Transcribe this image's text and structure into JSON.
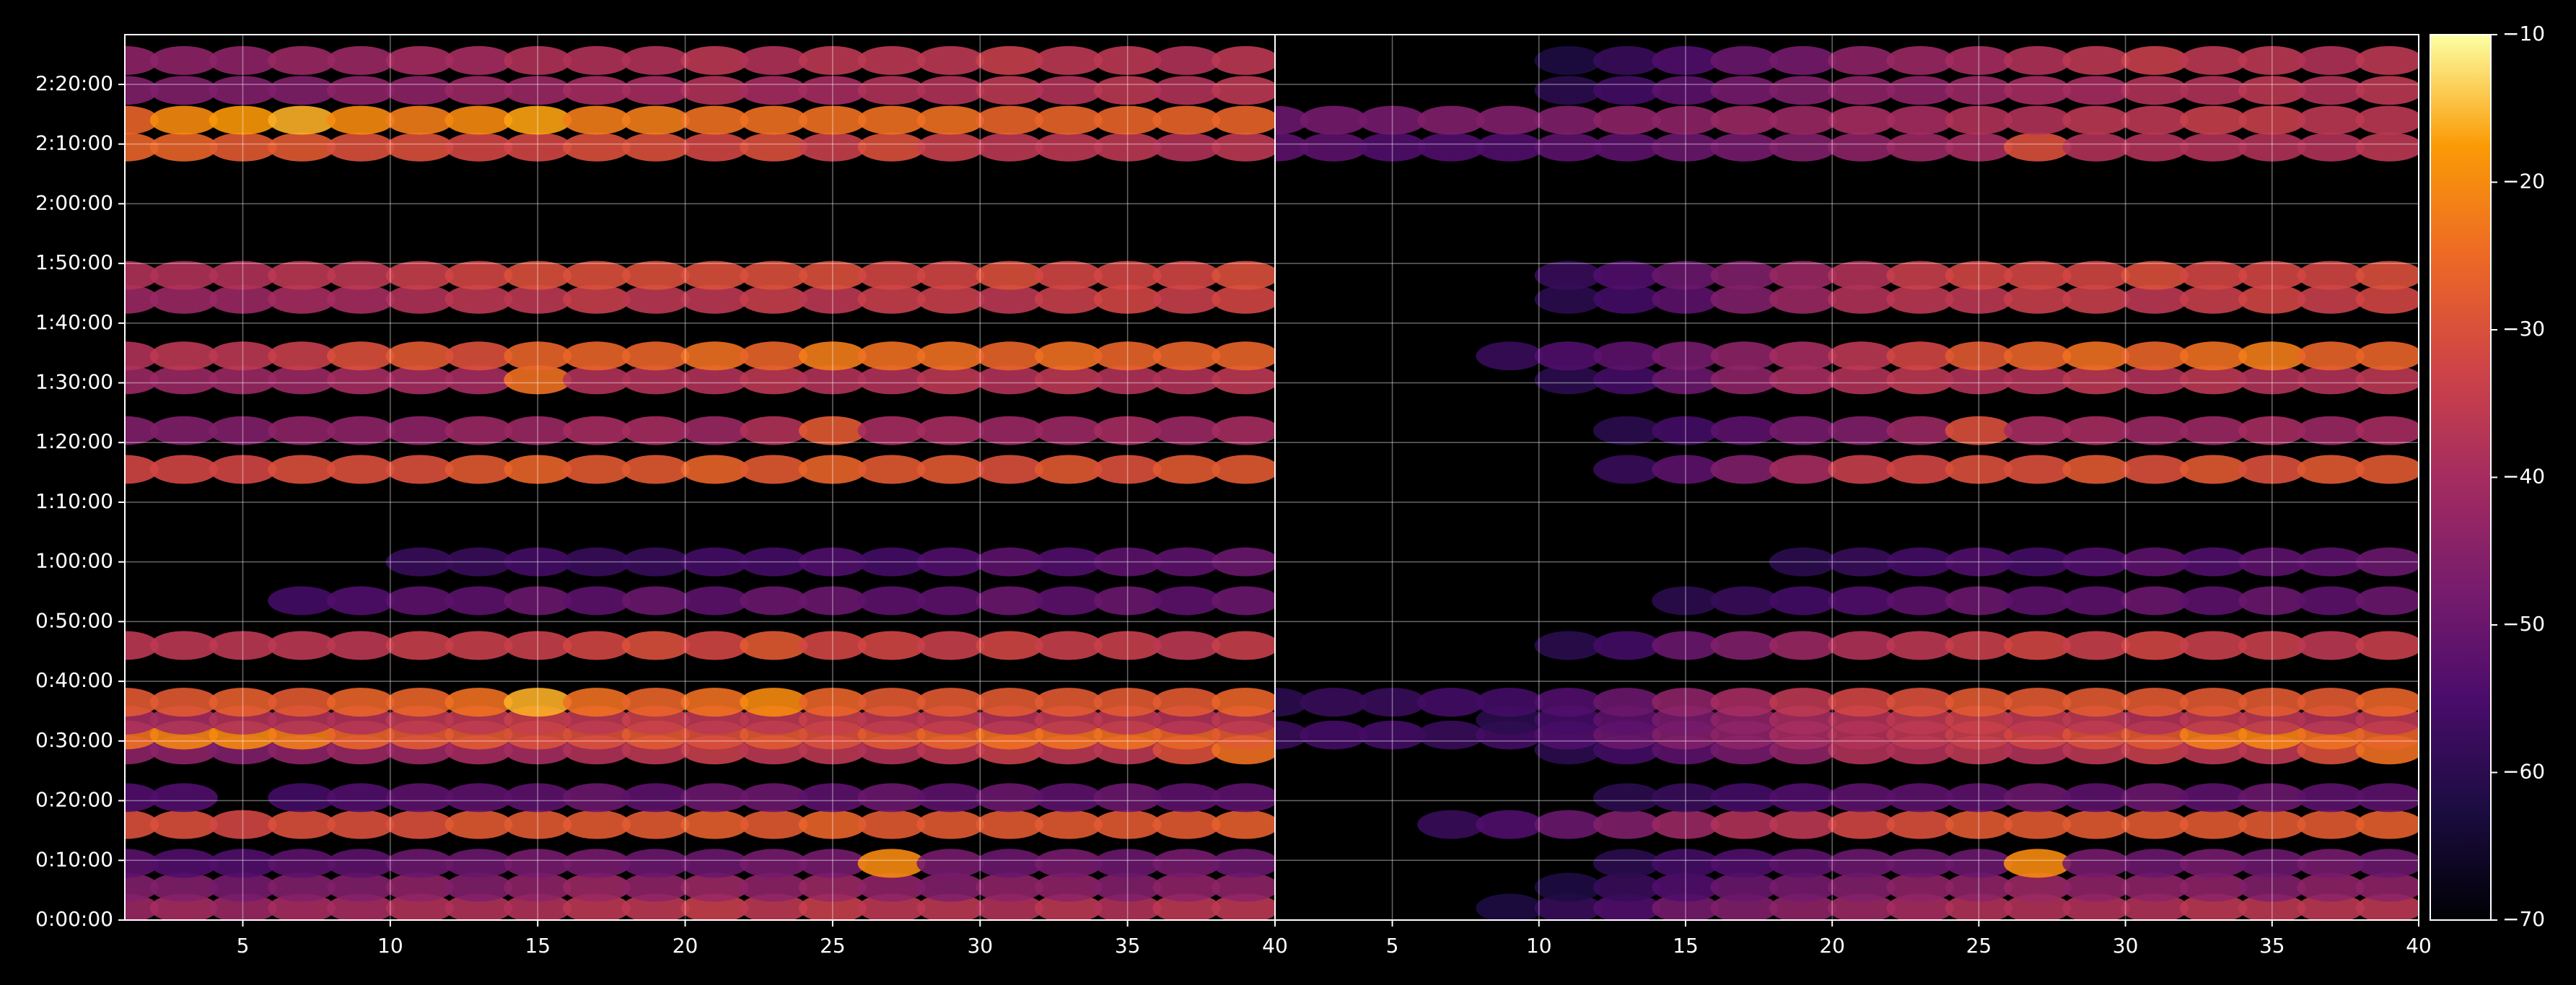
{
  "chart_data": {
    "type": "heatmap",
    "colormap": "inferno",
    "grid": true,
    "x": [
      1,
      3,
      5,
      7,
      9,
      11,
      13,
      15,
      17,
      19,
      21,
      23,
      25,
      27,
      29,
      31,
      33,
      35,
      37,
      39
    ],
    "y": [
      120,
      330,
      570,
      960,
      1230,
      1710,
      1860,
      2010,
      2190,
      2760,
      3210,
      3600,
      4530,
      4920,
      5430,
      5670,
      6240,
      6480,
      7770,
      8040,
      8340,
      8640
    ],
    "ylim": [
      0,
      8900
    ],
    "yticks": [
      {
        "value": 0,
        "label": "0:00:00"
      },
      {
        "value": 600,
        "label": "0:10:00"
      },
      {
        "value": 1200,
        "label": "0:20:00"
      },
      {
        "value": 1800,
        "label": "0:30:00"
      },
      {
        "value": 2400,
        "label": "0:40:00"
      },
      {
        "value": 3000,
        "label": "0:50:00"
      },
      {
        "value": 3600,
        "label": "1:00:00"
      },
      {
        "value": 4200,
        "label": "1:10:00"
      },
      {
        "value": 4800,
        "label": "1:20:00"
      },
      {
        "value": 5400,
        "label": "1:30:00"
      },
      {
        "value": 6000,
        "label": "1:40:00"
      },
      {
        "value": 6600,
        "label": "1:50:00"
      },
      {
        "value": 7200,
        "label": "2:00:00"
      },
      {
        "value": 7800,
        "label": "2:10:00"
      },
      {
        "value": 8400,
        "label": "2:20:00"
      }
    ],
    "colorbar": {
      "lim": [
        -70,
        -10
      ],
      "ticks": [
        {
          "value": -10,
          "label": "−10"
        },
        {
          "value": -20,
          "label": "−20"
        },
        {
          "value": -30,
          "label": "−30"
        },
        {
          "value": -40,
          "label": "−40"
        },
        {
          "value": -50,
          "label": "−50"
        },
        {
          "value": -60,
          "label": "−60"
        },
        {
          "value": -70,
          "label": "−70"
        }
      ]
    },
    "panels": [
      {
        "xlim": [
          1,
          40
        ],
        "xticks": [
          5,
          10,
          15,
          20,
          25,
          30,
          35,
          40
        ],
        "values": [
          [
            -42,
            -40,
            -42,
            -40,
            -40,
            -38,
            -38,
            -38,
            -36,
            -36,
            -34,
            -36,
            -34,
            -36,
            -36,
            -38,
            -36,
            -38,
            -36,
            -36
          ],
          [
            -46,
            -46,
            -48,
            -46,
            -46,
            -44,
            -46,
            -44,
            -42,
            -44,
            -42,
            -44,
            -42,
            -44,
            -46,
            -44,
            -44,
            -46,
            -44,
            -44
          ],
          [
            -52,
            -54,
            -54,
            -52,
            -52,
            -50,
            -50,
            -48,
            -48,
            -50,
            -50,
            -48,
            -48,
            -20,
            -48,
            -50,
            -48,
            -50,
            -48,
            -50
          ],
          [
            -30,
            -30,
            -32,
            -30,
            -30,
            -30,
            -28,
            -28,
            -28,
            -28,
            -27,
            -28,
            -26,
            -28,
            -28,
            -28,
            -28,
            -28,
            -28,
            -27
          ],
          [
            -54,
            -54,
            null,
            -56,
            -54,
            -52,
            -52,
            -52,
            -50,
            -52,
            -50,
            -50,
            -52,
            -50,
            -52,
            -50,
            -52,
            -50,
            -52,
            -52
          ],
          [
            -44,
            -44,
            -46,
            -44,
            -42,
            -42,
            -40,
            -40,
            -38,
            -36,
            -34,
            -36,
            -36,
            -38,
            -36,
            -34,
            -36,
            -36,
            -30,
            -24
          ],
          [
            -24,
            -21,
            -20,
            -22,
            -26,
            -28,
            -28,
            -30,
            -30,
            -28,
            -30,
            -28,
            -30,
            -28,
            -26,
            -24,
            -24,
            -24,
            -26,
            -28
          ],
          [
            -40,
            -40,
            -38,
            -38,
            -38,
            -36,
            -36,
            -34,
            -36,
            -34,
            -36,
            -36,
            -34,
            -36,
            -36,
            -38,
            -36,
            -36,
            -38,
            -36
          ],
          [
            -28,
            -28,
            -27,
            -28,
            -26,
            -26,
            -24,
            -16,
            -24,
            -26,
            -24,
            -20,
            -26,
            -28,
            -28,
            -28,
            -28,
            -28,
            -28,
            -26
          ],
          [
            -36,
            -36,
            -36,
            -36,
            -36,
            -34,
            -34,
            -34,
            -32,
            -30,
            -32,
            -28,
            -32,
            -32,
            -34,
            -32,
            -34,
            -34,
            -36,
            -34
          ],
          [
            null,
            null,
            null,
            -56,
            -54,
            -52,
            -52,
            -50,
            -52,
            -50,
            -52,
            -50,
            -50,
            -52,
            -52,
            -50,
            -52,
            -50,
            -52,
            -50
          ],
          [
            null,
            null,
            null,
            null,
            null,
            -58,
            -58,
            -56,
            -58,
            -58,
            -56,
            -56,
            -54,
            -56,
            -54,
            -52,
            -54,
            -52,
            -52,
            -50
          ],
          [
            -32,
            -32,
            -32,
            -30,
            -30,
            -30,
            -28,
            -26,
            -28,
            -28,
            -26,
            -28,
            -26,
            -28,
            -28,
            -30,
            -28,
            -30,
            -28,
            -28
          ],
          [
            -46,
            -46,
            -46,
            -44,
            -44,
            -44,
            -42,
            -42,
            -40,
            -40,
            -42,
            -38,
            -28,
            -40,
            -40,
            -42,
            -42,
            -40,
            -42,
            -40
          ],
          [
            -42,
            -42,
            -42,
            -42,
            -40,
            -40,
            -40,
            -24,
            -38,
            -38,
            -38,
            -36,
            -38,
            -38,
            -36,
            -38,
            -36,
            -38,
            -38,
            -36
          ],
          [
            -38,
            -36,
            -36,
            -34,
            -30,
            -28,
            -30,
            -26,
            -26,
            -26,
            -24,
            -26,
            -22,
            -24,
            -24,
            -26,
            -24,
            -26,
            -26,
            -26
          ],
          [
            -42,
            -42,
            -42,
            -40,
            -40,
            -38,
            -36,
            -36,
            -34,
            -36,
            -36,
            -34,
            -36,
            -34,
            -34,
            -36,
            -34,
            -32,
            -34,
            -32
          ],
          [
            -38,
            -38,
            -38,
            -36,
            -36,
            -34,
            -32,
            -30,
            -30,
            -30,
            -30,
            -30,
            -30,
            -32,
            -32,
            -30,
            -32,
            -32,
            -32,
            -30
          ],
          [
            -26,
            -26,
            -28,
            -28,
            -30,
            -30,
            -32,
            -32,
            -30,
            -30,
            -32,
            -30,
            -34,
            -30,
            -34,
            -36,
            -36,
            -36,
            -38,
            -36
          ],
          [
            -26,
            -20,
            -18,
            -16,
            -20,
            -22,
            -20,
            -17,
            -22,
            -22,
            -24,
            -24,
            -24,
            -24,
            -24,
            -26,
            -26,
            -26,
            -26,
            -26
          ],
          [
            -46,
            -46,
            -46,
            -46,
            -44,
            -44,
            -42,
            -42,
            -40,
            -40,
            -38,
            -40,
            -40,
            -38,
            -38,
            -36,
            -38,
            -36,
            -38,
            -36
          ],
          [
            -44,
            -44,
            -44,
            -42,
            -42,
            -40,
            -40,
            -38,
            -38,
            -38,
            -36,
            -38,
            -36,
            -36,
            -36,
            -34,
            -36,
            -36,
            -38,
            -36
          ]
        ]
      },
      {
        "xlim": [
          1,
          40
        ],
        "xticks": [
          5,
          10,
          15,
          20,
          25,
          30,
          35,
          40
        ],
        "values": [
          [
            null,
            null,
            null,
            null,
            -62,
            -58,
            -54,
            -48,
            -46,
            -44,
            -42,
            -40,
            -38,
            -38,
            -38,
            -38,
            -36,
            -36,
            -36,
            -36
          ],
          [
            null,
            null,
            null,
            null,
            null,
            -62,
            -58,
            -54,
            -50,
            -48,
            -46,
            -44,
            -44,
            -42,
            -44,
            -44,
            -44,
            -46,
            -44,
            -44
          ],
          [
            null,
            null,
            null,
            null,
            null,
            null,
            -60,
            -56,
            -54,
            -52,
            -50,
            -50,
            -50,
            -20,
            -48,
            -50,
            -48,
            -50,
            -48,
            -50
          ],
          [
            null,
            null,
            null,
            -58,
            -54,
            -50,
            -46,
            -42,
            -38,
            -36,
            -32,
            -30,
            -28,
            -28,
            -28,
            -28,
            -28,
            -28,
            -28,
            -27
          ],
          [
            null,
            null,
            null,
            null,
            null,
            null,
            -60,
            -58,
            -56,
            -54,
            -52,
            -52,
            -52,
            -50,
            -52,
            -50,
            -52,
            -50,
            -52,
            -52
          ],
          [
            null,
            null,
            null,
            null,
            null,
            -60,
            -56,
            -52,
            -48,
            -44,
            -38,
            -38,
            -36,
            -38,
            -36,
            -34,
            -36,
            -36,
            -30,
            -24
          ],
          [
            -58,
            -56,
            -56,
            -58,
            -56,
            -54,
            -50,
            -46,
            -44,
            -40,
            -38,
            -36,
            -34,
            -32,
            -30,
            -28,
            -22,
            -21,
            -24,
            -26
          ],
          [
            null,
            null,
            null,
            null,
            -60,
            -56,
            -52,
            -48,
            -44,
            -40,
            -38,
            -36,
            -34,
            -36,
            -36,
            -38,
            -36,
            -36,
            -38,
            -36
          ],
          [
            -60,
            -58,
            -58,
            -56,
            -56,
            -54,
            -50,
            -44,
            -40,
            -36,
            -32,
            -30,
            -28,
            -28,
            -28,
            -28,
            -28,
            -28,
            -28,
            -26
          ],
          [
            null,
            null,
            null,
            null,
            null,
            -60,
            -56,
            -50,
            -46,
            -42,
            -38,
            -36,
            -34,
            -32,
            -34,
            -32,
            -34,
            -34,
            -36,
            -34
          ],
          [
            null,
            null,
            null,
            null,
            null,
            null,
            null,
            -60,
            -58,
            -56,
            -54,
            -52,
            -50,
            -52,
            -52,
            -50,
            -52,
            -50,
            -52,
            -50
          ],
          [
            null,
            null,
            null,
            null,
            null,
            null,
            null,
            null,
            null,
            -60,
            -58,
            -56,
            -54,
            -56,
            -54,
            -52,
            -54,
            -52,
            -52,
            -50
          ],
          [
            null,
            null,
            null,
            null,
            null,
            null,
            -58,
            -52,
            -46,
            -40,
            -34,
            -32,
            -30,
            -30,
            -28,
            -30,
            -28,
            -30,
            -28,
            -28
          ],
          [
            null,
            null,
            null,
            null,
            null,
            null,
            -60,
            -56,
            -52,
            -48,
            -46,
            -42,
            -30,
            -40,
            -40,
            -42,
            -42,
            -40,
            -42,
            -40
          ],
          [
            null,
            null,
            null,
            null,
            null,
            -60,
            -56,
            -50,
            -44,
            -40,
            -38,
            -36,
            -38,
            -38,
            -36,
            -38,
            -36,
            -38,
            -38,
            -36
          ],
          [
            null,
            null,
            null,
            null,
            -58,
            -54,
            -52,
            -48,
            -44,
            -40,
            -36,
            -32,
            -28,
            -26,
            -24,
            -26,
            -24,
            -22,
            -26,
            -26
          ],
          [
            null,
            null,
            null,
            null,
            null,
            -60,
            -56,
            -52,
            -46,
            -42,
            -38,
            -36,
            -36,
            -34,
            -34,
            -36,
            -34,
            -32,
            -34,
            -32
          ],
          [
            null,
            null,
            null,
            null,
            null,
            -58,
            -54,
            -50,
            -46,
            -42,
            -38,
            -34,
            -32,
            -32,
            -32,
            -30,
            -32,
            -32,
            -32,
            -30
          ],
          [
            -52,
            -52,
            -54,
            -54,
            -54,
            -52,
            -52,
            -50,
            -48,
            -46,
            -44,
            -42,
            -40,
            -30,
            -38,
            -38,
            -38,
            -38,
            -38,
            -36
          ],
          [
            -50,
            -48,
            -48,
            -46,
            -46,
            -46,
            -44,
            -44,
            -42,
            -42,
            -40,
            -40,
            -38,
            -38,
            -36,
            -36,
            -34,
            -34,
            -36,
            -36
          ],
          [
            null,
            null,
            null,
            null,
            null,
            -60,
            -56,
            -52,
            -48,
            -46,
            -44,
            -44,
            -42,
            -40,
            -40,
            -38,
            -38,
            -36,
            -38,
            -36
          ],
          [
            null,
            null,
            null,
            null,
            null,
            -62,
            -58,
            -54,
            -50,
            -48,
            -44,
            -42,
            -40,
            -38,
            -36,
            -34,
            -36,
            -36,
            -38,
            -36
          ]
        ]
      }
    ]
  }
}
